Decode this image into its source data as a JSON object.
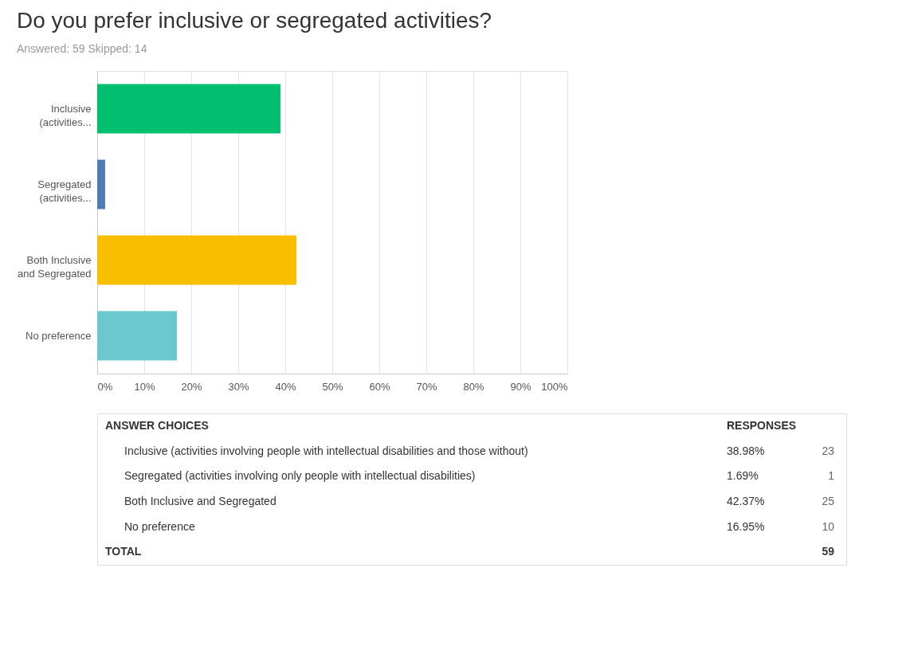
{
  "chart_data": {
    "type": "bar",
    "orientation": "horizontal",
    "title": "Do you prefer inclusive or segregated activities?",
    "subtitle": "Answered: 59    Skipped: 14",
    "categories": [
      "Inclusive (activities...",
      "Segregated (activities...",
      "Both Inclusive and Segregated",
      "No preference"
    ],
    "values": [
      38.98,
      1.69,
      42.37,
      16.95
    ],
    "colors": [
      "#00bf6f",
      "#507cb6",
      "#f9be00",
      "#6bc8cd"
    ],
    "xlim": [
      0,
      100
    ],
    "xticks": [
      {
        "value": 0,
        "label": "0%"
      },
      {
        "value": 10,
        "label": "10%"
      },
      {
        "value": 20,
        "label": "20%"
      },
      {
        "value": 30,
        "label": "30%"
      },
      {
        "value": 40,
        "label": "40%"
      },
      {
        "value": 50,
        "label": "50%"
      },
      {
        "value": 60,
        "label": "60%"
      },
      {
        "value": 70,
        "label": "70%"
      },
      {
        "value": 80,
        "label": "80%"
      },
      {
        "value": 90,
        "label": "90%"
      },
      {
        "value": 100,
        "label": "100%"
      }
    ],
    "grid": "x",
    "annotations": [
      "ANSWER CHOICES",
      "RESPONSES",
      "Inclusive (activities involving people with intellectual disabilities and those without)",
      "Segregated (activities involving only people with intellectual disabilities)",
      "Both Inclusive and Segregated",
      "No preference",
      "38.98%",
      "1.69%",
      "42.37%",
      "16.95%",
      "23",
      "1",
      "25",
      "10",
      "TOTAL",
      "59"
    ]
  }
}
